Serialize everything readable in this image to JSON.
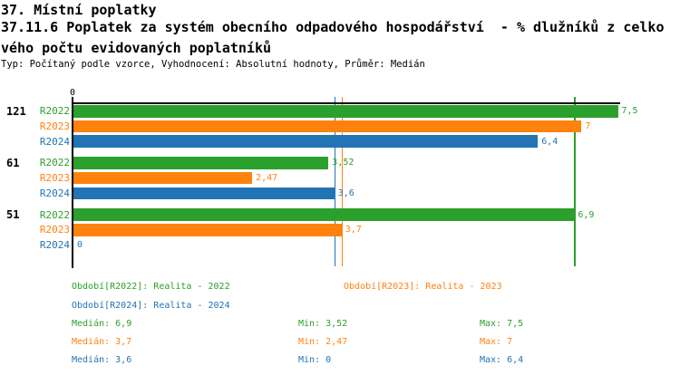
{
  "header": {
    "title_line1": "37. Místní poplatky",
    "title_line2": "37.11.6 Poplatek za systém obecního odpadového hospodářství  - % dlužníků z celko",
    "title_line3": "vého počtu evidovaných poplatníků",
    "subtitle": "Typ: Počítaný podle vzorce, Vyhodnocení: Absolutní hodnoty, Průměr: Medián"
  },
  "colors": {
    "r2022": "#2CA02C",
    "r2023": "#FF820E",
    "r2024": "#2274B5",
    "axis": "#000000",
    "background": "#FFFFFF"
  },
  "chart_data": {
    "type": "bar",
    "orientation": "horizontal",
    "title": "",
    "xlabel": "",
    "ylabel": "",
    "axis": {
      "min": 0,
      "max": 7.53,
      "tick_labels": [
        "0"
      ],
      "grid": false
    },
    "series_names": [
      "R2022",
      "R2023",
      "R2024"
    ],
    "groups": [
      {
        "label": "121",
        "bars": [
          {
            "series": "R2022",
            "value": 7.5,
            "value_label": "7,5"
          },
          {
            "series": "R2023",
            "value": 7,
            "value_label": "7"
          },
          {
            "series": "R2024",
            "value": 6.4,
            "value_label": "6,4"
          }
        ]
      },
      {
        "label": "61",
        "bars": [
          {
            "series": "R2022",
            "value": 3.52,
            "value_label": "3,52"
          },
          {
            "series": "R2023",
            "value": 2.47,
            "value_label": "2,47"
          },
          {
            "series": "R2024",
            "value": 3.6,
            "value_label": "3,6"
          }
        ]
      },
      {
        "label": "51",
        "bars": [
          {
            "series": "R2022",
            "value": 6.9,
            "value_label": "6,9"
          },
          {
            "series": "R2023",
            "value": 3.7,
            "value_label": "3,7"
          },
          {
            "series": "R2024",
            "value": 0,
            "value_label": "0"
          }
        ]
      }
    ],
    "median_lines": [
      {
        "series": "R2022",
        "value": 6.9
      },
      {
        "series": "R2023",
        "value": 3.7
      },
      {
        "series": "R2024",
        "value": 3.6
      }
    ]
  },
  "legend": {
    "periods": [
      {
        "series": "R2022",
        "label": "Období[R2022]: Realita - 2022"
      },
      {
        "series": "R2023",
        "label": "Období[R2023]: Realita - 2023"
      },
      {
        "series": "R2024",
        "label": "Období[R2024]: Realita - 2024"
      }
    ],
    "stats": [
      {
        "series": "R2022",
        "median": "Medián: 6,9",
        "min": "Min: 3,52",
        "max": "Max: 7,5"
      },
      {
        "series": "R2023",
        "median": "Medián: 3,7",
        "min": "Min: 2,47",
        "max": "Max: 7"
      },
      {
        "series": "R2024",
        "median": "Medián: 3,6",
        "min": "Min: 0",
        "max": "Max: 6,4"
      }
    ]
  }
}
